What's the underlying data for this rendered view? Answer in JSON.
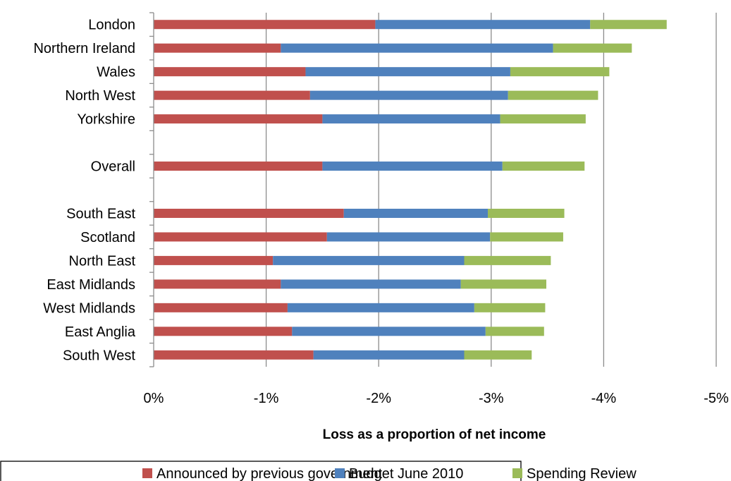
{
  "chart_data": {
    "type": "bar",
    "orientation": "horizontal",
    "stacked": true,
    "xlabel": "Loss as a proportion of net income",
    "xlim": [
      0,
      -5
    ],
    "x_ticks": [
      "0%",
      "-1%",
      "-2%",
      "-3%",
      "-4%",
      "-5%"
    ],
    "x_tick_values": [
      0,
      -1,
      -2,
      -3,
      -4,
      -5
    ],
    "grid": "vertical",
    "legend_position": "bottom",
    "categories": [
      "London",
      "Northern Ireland",
      "Wales",
      "North West",
      "Yorkshire",
      "",
      "Overall",
      "",
      "South East",
      "Scotland",
      "North East",
      "East Midlands",
      "West Midlands",
      "East Anglia",
      "South West"
    ],
    "series": [
      {
        "name": "Announced by previous government",
        "color": "#C0504D",
        "values": [
          -1.97,
          -1.13,
          -1.35,
          -1.39,
          -1.5,
          null,
          -1.5,
          null,
          -1.69,
          -1.54,
          -1.06,
          -1.13,
          -1.19,
          -1.23,
          -1.42
        ]
      },
      {
        "name": "Budget June 2010",
        "color": "#4F81BD",
        "values": [
          -1.91,
          -2.42,
          -1.82,
          -1.76,
          -1.58,
          null,
          -1.6,
          null,
          -1.28,
          -1.45,
          -1.7,
          -1.6,
          -1.66,
          -1.72,
          -1.34
        ]
      },
      {
        "name": "Spending Review",
        "color": "#9BBB59",
        "values": [
          -0.68,
          -0.7,
          -0.88,
          -0.8,
          -0.76,
          null,
          -0.73,
          null,
          -0.68,
          -0.65,
          -0.77,
          -0.76,
          -0.63,
          -0.52,
          -0.6
        ]
      }
    ]
  }
}
